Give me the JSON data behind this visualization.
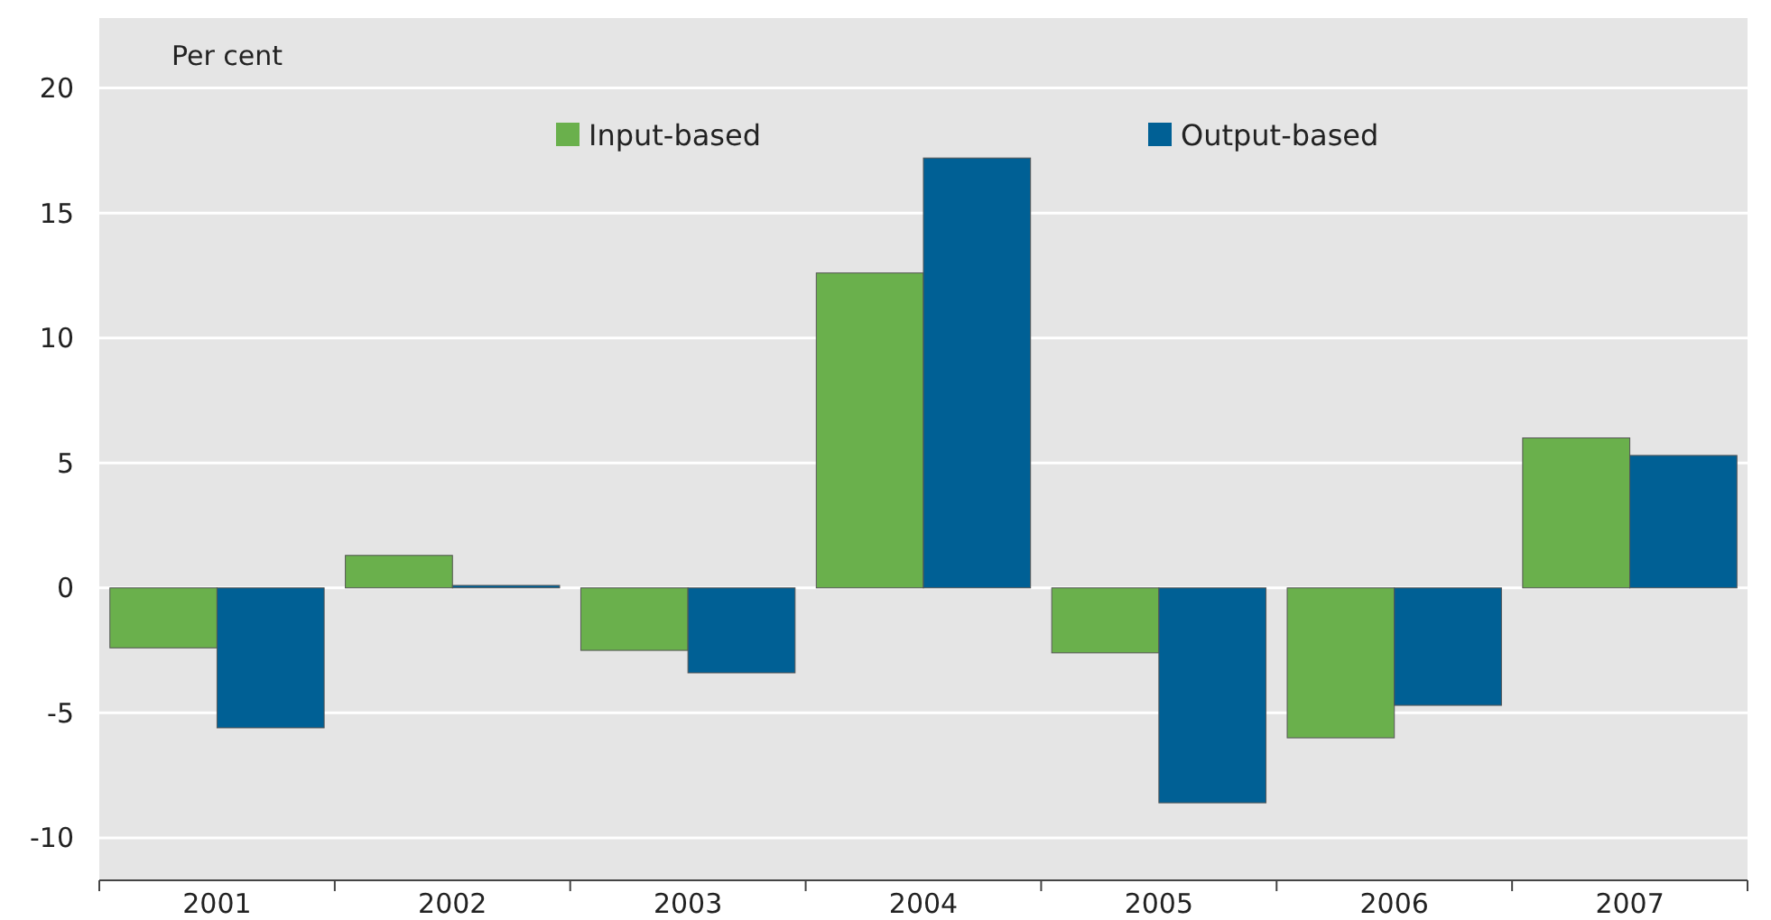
{
  "chart_data": {
    "type": "bar",
    "ylabel": "Per cent",
    "categories": [
      "2001",
      "2002",
      "2003",
      "2004",
      "2005",
      "2006",
      "2007"
    ],
    "series": [
      {
        "name": "Input-based",
        "color": "#6ab04c",
        "values": [
          -2.4,
          1.3,
          -2.5,
          12.6,
          -2.6,
          -6.0,
          6.0
        ]
      },
      {
        "name": "Output-based",
        "color": "#006095",
        "values": [
          -5.6,
          0.1,
          -3.4,
          17.2,
          -8.6,
          -4.7,
          5.3
        ]
      }
    ],
    "ylim": [
      -11.7,
      22.8
    ],
    "yticks": [
      -10,
      -5,
      0,
      5,
      10,
      15,
      20
    ],
    "grid": "y",
    "legend": "top"
  }
}
